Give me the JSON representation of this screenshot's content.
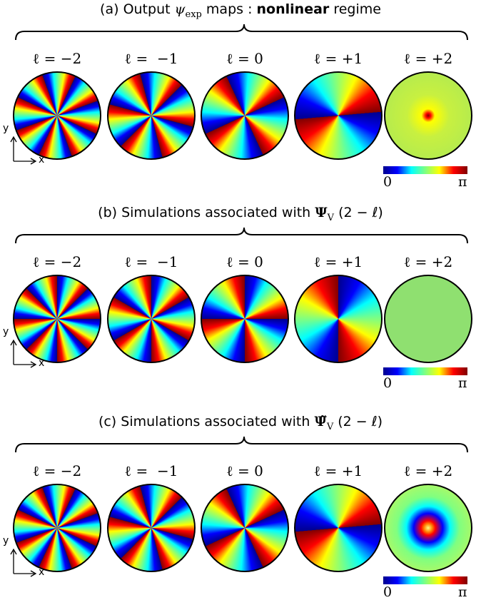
{
  "panels": [
    {
      "label": "(a)",
      "text": "Output",
      "symbol": "ψ",
      "subscript": "exp",
      "text2": "maps :",
      "bold": "nonlinear",
      "text3": "regime",
      "columns": [
        "ℓ = −2",
        "ℓ =  −1",
        "ℓ = 0",
        "ℓ = +1",
        "ℓ = +2"
      ],
      "colorbar": {
        "min": "0",
        "max": "π"
      },
      "axes": {
        "x": "x",
        "y": "y"
      }
    },
    {
      "label": "(b)",
      "text": "Simulations associated with",
      "symbol": "Ψ",
      "subscript": "V",
      "text2": "(2 − ℓ)",
      "columns": [
        "ℓ = −2",
        "ℓ =  −1",
        "ℓ = 0",
        "ℓ = +1",
        "ℓ = +2"
      ],
      "colorbar": {
        "min": "0",
        "max": "π"
      },
      "axes": {
        "x": "x",
        "y": "y"
      }
    },
    {
      "label": "(c)",
      "text": "Simulations associated with",
      "symbol": "Ψ̃",
      "subscript": "V",
      "text2": "(2 − ℓ)",
      "columns": [
        "ℓ = −2",
        "ℓ =  −1",
        "ℓ = 0",
        "ℓ = +1",
        "ℓ = +2"
      ],
      "colorbar": {
        "min": "0",
        "max": "π"
      },
      "axes": {
        "x": "x",
        "y": "y"
      }
    }
  ]
}
